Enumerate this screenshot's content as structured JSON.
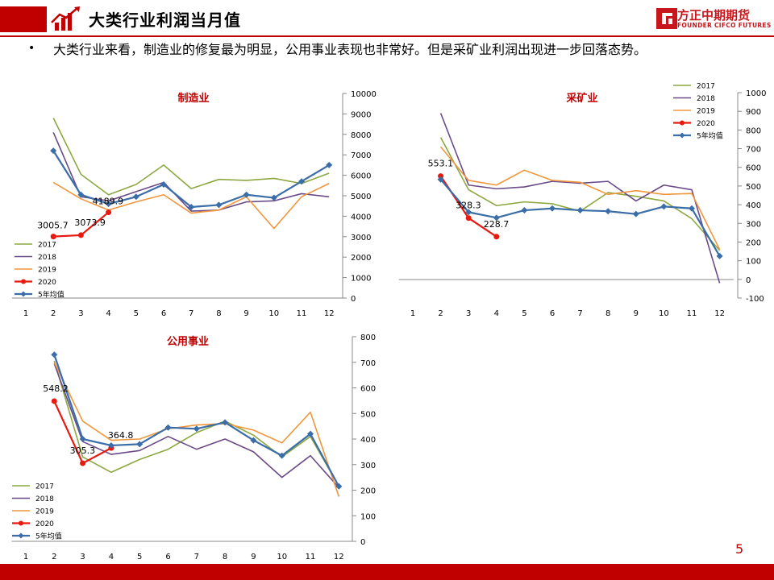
{
  "header": {
    "title": "大类行业利润当月值"
  },
  "logo": {
    "name": "方正中期期货",
    "sub": "FOUNDER CIFCO FUTURES"
  },
  "bullet": {
    "text": "大类行业来看，制造业的修复最为明显，公用事业表现也非常好。但是采矿业利润出现进一步回落态势。"
  },
  "page_number": "5",
  "colors": {
    "brand": "#c00000",
    "s2017": "#8DA840",
    "s2018": "#6A4A88",
    "s2019": "#F0963C",
    "s2020": "#E8190E",
    "avg": "#3B6EA8"
  },
  "chart_data": [
    {
      "type": "line",
      "title": "制造业",
      "categories": [
        "1",
        "2",
        "3",
        "4",
        "5",
        "6",
        "7",
        "8",
        "9",
        "10",
        "11",
        "12"
      ],
      "ylim": [
        0,
        10000
      ],
      "yticks": [
        "0",
        "1000",
        "2000",
        "3000",
        "4000",
        "5000",
        "6000",
        "7000",
        "8000",
        "9000",
        "10000"
      ],
      "legend": "bottom-left",
      "series": [
        {
          "name": "2017",
          "values": [
            null,
            8800,
            6050,
            5050,
            5550,
            6500,
            5350,
            5800,
            5750,
            5850,
            5600,
            6100
          ]
        },
        {
          "name": "2018",
          "values": [
            null,
            8100,
            4950,
            4750,
            5200,
            5650,
            4250,
            4300,
            4700,
            4750,
            5100,
            4950
          ]
        },
        {
          "name": "2019",
          "values": [
            null,
            5650,
            4850,
            4300,
            4700,
            5050,
            4150,
            4300,
            4950,
            3400,
            4950,
            5600
          ]
        },
        {
          "name": "2020",
          "values": [
            null,
            3005.7,
            3073.9,
            4189.9,
            null,
            null,
            null,
            null,
            null,
            null,
            null,
            null
          ]
        },
        {
          "name": "5年均值",
          "values": [
            null,
            7200,
            5050,
            4600,
            4950,
            5550,
            4450,
            4550,
            5050,
            4900,
            5700,
            6500
          ]
        }
      ],
      "data_labels": [
        {
          "x": "2",
          "value": "3005.7"
        },
        {
          "x": "3",
          "value": "3073.9"
        },
        {
          "x": "4",
          "value": "4189.9"
        }
      ]
    },
    {
      "type": "line",
      "title": "采矿业",
      "categories": [
        "1",
        "2",
        "3",
        "4",
        "5",
        "6",
        "7",
        "8",
        "9",
        "10",
        "11",
        "12"
      ],
      "ylim": [
        -100,
        1000
      ],
      "yticks": [
        "-100",
        "0",
        "100",
        "200",
        "300",
        "400",
        "500",
        "600",
        "700",
        "800",
        "900",
        "1000"
      ],
      "legend": "top-right",
      "series": [
        {
          "name": "2017",
          "values": [
            null,
            760,
            480,
            395,
            415,
            405,
            365,
            465,
            445,
            420,
            325,
            155
          ]
        },
        {
          "name": "2018",
          "values": [
            null,
            890,
            505,
            485,
            495,
            525,
            515,
            525,
            420,
            505,
            480,
            -20
          ]
        },
        {
          "name": "2019",
          "values": [
            null,
            710,
            530,
            505,
            585,
            530,
            520,
            455,
            475,
            455,
            460,
            160
          ]
        },
        {
          "name": "2020",
          "values": [
            null,
            553.1,
            328.3,
            228.7,
            null,
            null,
            null,
            null,
            null,
            null,
            null,
            null
          ]
        },
        {
          "name": "5年均值",
          "values": [
            null,
            535,
            360,
            330,
            370,
            380,
            370,
            365,
            350,
            390,
            380,
            125
          ]
        }
      ],
      "data_labels": [
        {
          "x": "2",
          "value": "553.1"
        },
        {
          "x": "3",
          "value": "328.3"
        },
        {
          "x": "4",
          "value": "228.7"
        }
      ]
    },
    {
      "type": "line",
      "title": "公用事业",
      "categories": [
        "1",
        "2",
        "3",
        "4",
        "5",
        "6",
        "7",
        "8",
        "9",
        "10",
        "11",
        "12"
      ],
      "ylim": [
        0,
        800
      ],
      "yticks": [
        "0",
        "100",
        "200",
        "300",
        "400",
        "500",
        "600",
        "700",
        "800"
      ],
      "legend": "bottom-left",
      "series": [
        {
          "name": "2017",
          "values": [
            null,
            705,
            330,
            270,
            320,
            360,
            425,
            470,
            415,
            330,
            410,
            215
          ]
        },
        {
          "name": "2018",
          "values": [
            null,
            695,
            390,
            340,
            355,
            410,
            360,
            400,
            350,
            250,
            335,
            210
          ]
        },
        {
          "name": "2019",
          "values": [
            null,
            700,
            470,
            395,
            400,
            440,
            455,
            460,
            435,
            385,
            505,
            175
          ]
        },
        {
          "name": "2020",
          "values": [
            null,
            548.2,
            305.3,
            364.8,
            null,
            null,
            null,
            null,
            null,
            null,
            null,
            null
          ]
        },
        {
          "name": "5年均值",
          "values": [
            null,
            730,
            400,
            375,
            380,
            445,
            440,
            465,
            395,
            335,
            420,
            215
          ]
        }
      ],
      "data_labels": [
        {
          "x": "2",
          "value": "548.2"
        },
        {
          "x": "3",
          "value": "305.3"
        },
        {
          "x": "4",
          "value": "364.8"
        }
      ]
    }
  ]
}
